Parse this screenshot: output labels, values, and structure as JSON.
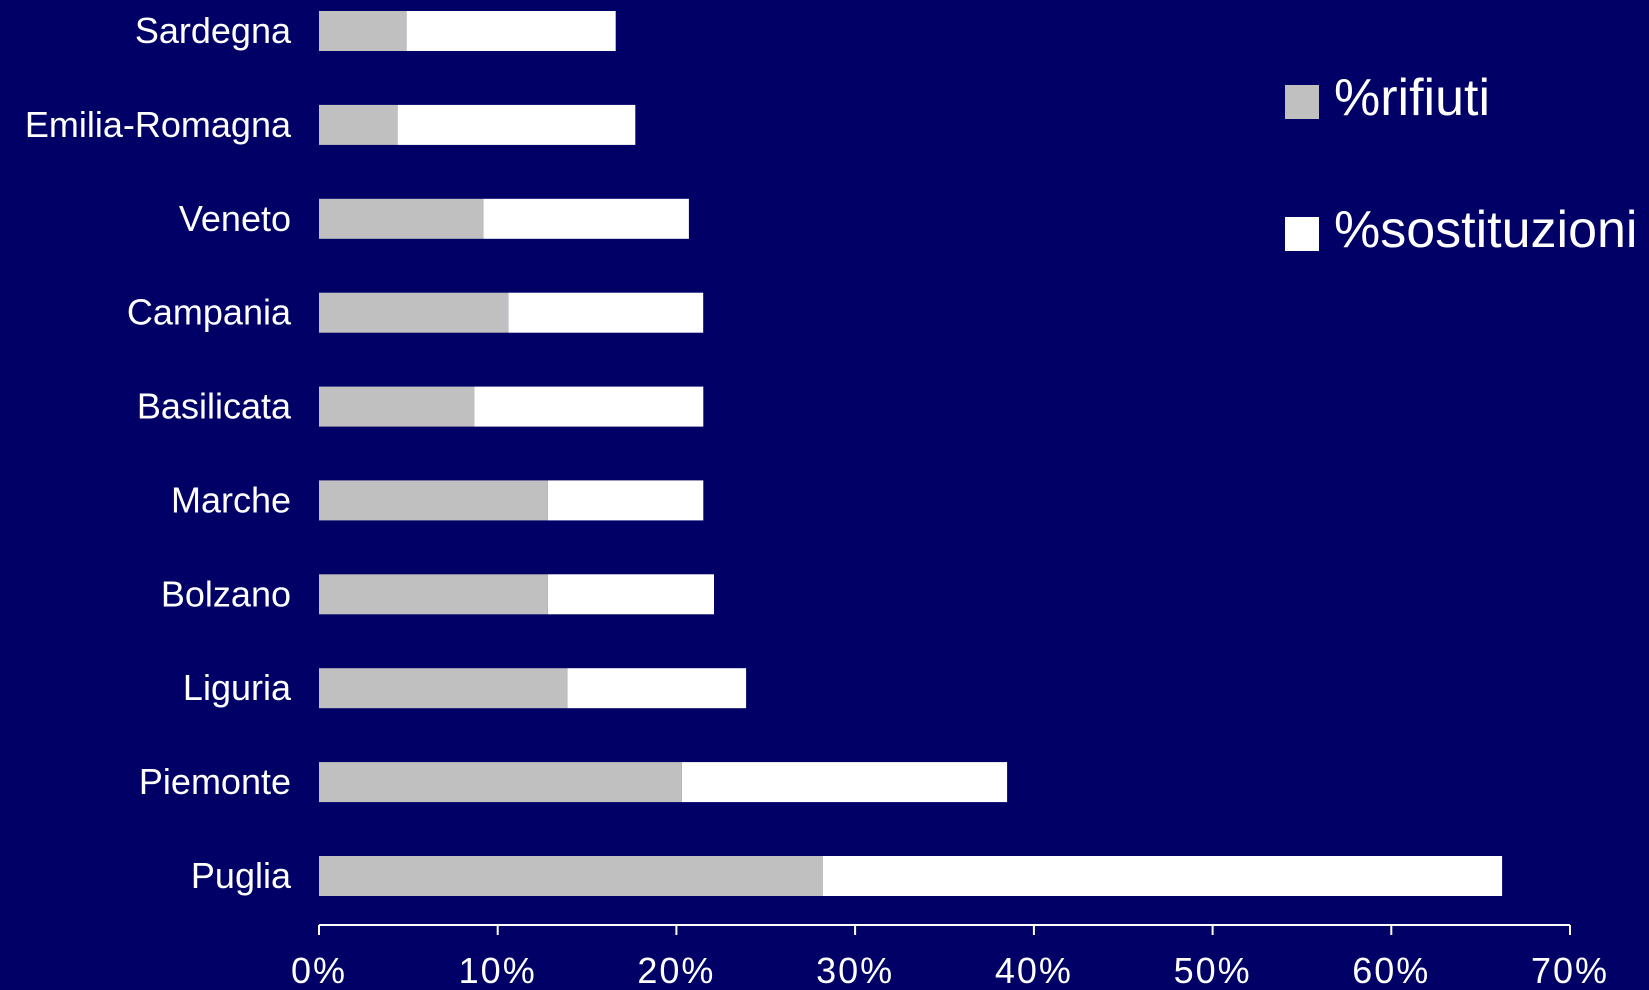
{
  "colors": {
    "background": "#000066",
    "rifiuti": "#c0c0c0",
    "sostituzioni": "#ffffff",
    "axis": "#ffffff"
  },
  "chart_data": {
    "type": "bar",
    "orientation": "horizontal",
    "stacked": true,
    "percent_axis": true,
    "categories": [
      "Sardegna",
      "Emilia-Romagna",
      "Veneto",
      "Campania",
      "Basilicata",
      "Marche",
      "Bolzano",
      "Liguria",
      "Piemonte",
      "Puglia"
    ],
    "series": [
      {
        "name": "%rifiuti",
        "values": [
          4.9,
          4.4,
          9.2,
          10.6,
          8.7,
          12.8,
          12.8,
          13.9,
          20.3,
          28.2
        ]
      },
      {
        "name": "%sostituzioni",
        "values": [
          11.7,
          13.3,
          11.5,
          10.9,
          12.8,
          8.7,
          9.3,
          10.0,
          18.2,
          38.0
        ]
      }
    ],
    "xlim": [
      0,
      70
    ],
    "x_ticks": [
      0,
      10,
      20,
      30,
      40,
      50,
      60,
      70
    ],
    "x_tick_labels": [
      "0%",
      "10%",
      "20%",
      "30%",
      "40%",
      "50%",
      "60%",
      "70%"
    ],
    "title": "",
    "xlabel": "",
    "ylabel": "",
    "grid": false,
    "legend_position": "top-right"
  }
}
